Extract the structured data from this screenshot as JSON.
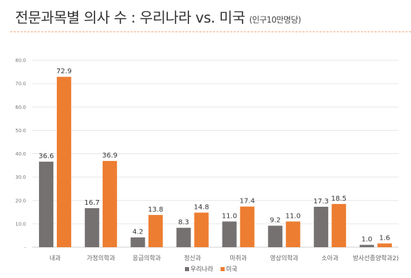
{
  "header": {
    "title": "전문과목별 의사 수 : 우리나라 vs. 미국",
    "subtitle": "(인구10만명당)"
  },
  "chart_data": {
    "type": "bar",
    "title": "전문과목별 의사 수 : 우리나라 vs. 미국 (인구10만명당)",
    "categories": [
      "내과",
      "가정의학과",
      "응급의학과",
      "정신과",
      "마취과",
      "영상의학과",
      "소아과",
      "방사선종양학과2)"
    ],
    "series": [
      {
        "name": "우리나라",
        "values": [
          36.6,
          16.7,
          4.2,
          8.3,
          11.0,
          9.2,
          17.3,
          1.0
        ],
        "color": "#767171"
      },
      {
        "name": "미국",
        "values": [
          72.9,
          36.9,
          13.8,
          14.8,
          17.4,
          11.0,
          18.5,
          1.6
        ],
        "color": "#ED7D31"
      }
    ],
    "ylim": [
      0,
      80
    ],
    "yticks": [
      0,
      10,
      20,
      30,
      40,
      50,
      60,
      70,
      80
    ],
    "ytick_labels": [
      "-",
      "10.0",
      "20.0",
      "30.0",
      "40.0",
      "50.0",
      "60.0",
      "70.0",
      "80.0"
    ],
    "xlabel": "",
    "ylabel": "",
    "grid": true,
    "legend": "bottom"
  }
}
